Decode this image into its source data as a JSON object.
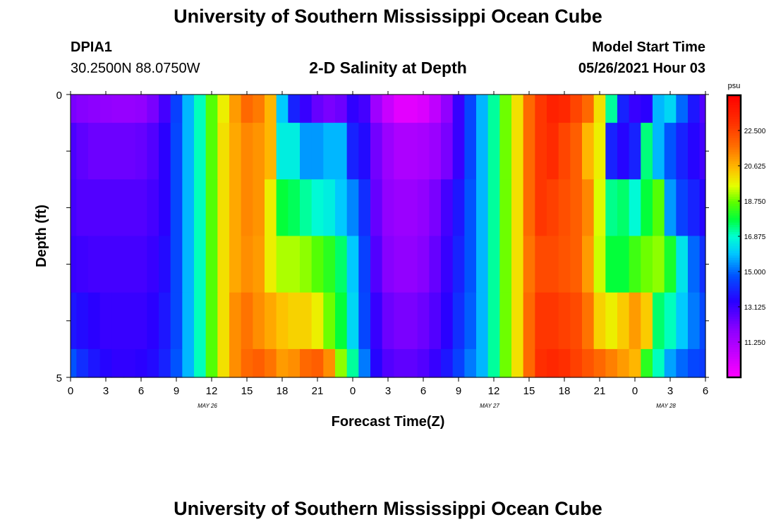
{
  "header": {
    "title": "University of Southern Mississippi Ocean Cube",
    "station_id": "DPIA1",
    "station_coords": "30.2500N  88.0750W",
    "plot_title": "2-D Salinity at Depth",
    "model_start_label": "Model Start Time",
    "model_start_value": "05/26/2021 Hour 03"
  },
  "footer": {
    "title": "University of Southern Mississippi Ocean Cube"
  },
  "chart_data": {
    "type": "heatmap",
    "title": "2-D Salinity at Depth",
    "xlabel": "Forecast Time(Z)",
    "ylabel": "Depth (ft)",
    "x_hours": [
      0,
      1,
      2,
      3,
      4,
      5,
      6,
      7,
      8,
      9,
      10,
      11,
      12,
      13,
      14,
      15,
      16,
      17,
      18,
      19,
      20,
      21,
      22,
      23,
      24,
      25,
      26,
      27,
      28,
      29,
      30,
      31,
      32,
      33,
      34,
      35,
      36,
      37,
      38,
      39,
      40,
      41,
      42,
      43,
      44,
      45,
      46,
      47,
      48,
      49,
      50,
      51,
      52,
      53,
      54
    ],
    "x_tick_labels": [
      "0",
      "3",
      "6",
      "9",
      "12",
      "15",
      "18",
      "21",
      "0",
      "3",
      "6",
      "9",
      "12",
      "15",
      "18",
      "21",
      "0",
      "3",
      "6"
    ],
    "date_labels": [
      {
        "text": "MAY 26",
        "hour": 12
      },
      {
        "text": "MAY 27",
        "hour": 36
      },
      {
        "text": "MAY 28",
        "hour": 51
      }
    ],
    "y_tick_labels": [
      "0",
      "5"
    ],
    "ylim": [
      0,
      5
    ],
    "colorbar": {
      "unit": "psu",
      "vmin": 9.375,
      "vmax": 24.375,
      "tick_labels": [
        "22.500",
        "20.625",
        "18.750",
        "16.875",
        "15.000",
        "13.125",
        "11.250"
      ],
      "tick_values": [
        22.5,
        20.625,
        18.75,
        16.875,
        15.0,
        13.125,
        11.25
      ]
    },
    "bands": [
      {
        "depth": [
          0.0,
          0.5
        ],
        "values": [
          12.2,
          12.0,
          11.9,
          11.8,
          11.7,
          11.7,
          11.8,
          12.2,
          13.0,
          14.5,
          15.8,
          17.0,
          18.6,
          19.8,
          21.0,
          21.8,
          21.5,
          20.6,
          16.0,
          14.0,
          13.2,
          12.5,
          12.2,
          12.4,
          13.3,
          13.0,
          11.5,
          10.6,
          10.0,
          10.0,
          10.2,
          10.8,
          11.8,
          13.2,
          14.6,
          15.8,
          17.2,
          18.8,
          20.0,
          21.8,
          22.8,
          23.4,
          23.2,
          22.5,
          21.8,
          20.0,
          17.2,
          14.0,
          13.2,
          13.4,
          15.8,
          16.2,
          15.0,
          13.8,
          12.8
        ]
      },
      {
        "depth": [
          0.5,
          1.5
        ],
        "values": [
          12.9,
          12.6,
          12.4,
          12.4,
          12.4,
          12.4,
          12.5,
          12.8,
          13.4,
          14.6,
          15.8,
          17.0,
          18.6,
          20.0,
          20.8,
          21.3,
          21.1,
          20.6,
          16.6,
          16.6,
          15.5,
          15.5,
          15.8,
          15.8,
          14.0,
          13.6,
          12.3,
          11.6,
          11.2,
          11.2,
          11.3,
          11.6,
          12.2,
          13.2,
          14.6,
          15.8,
          17.2,
          18.8,
          20.0,
          21.8,
          22.8,
          23.1,
          22.5,
          22.0,
          20.6,
          19.8,
          14.0,
          13.5,
          14.0,
          17.4,
          15.8,
          14.8,
          14.0,
          13.5,
          13.0
        ]
      },
      {
        "depth": [
          1.5,
          2.5
        ],
        "values": [
          13.0,
          12.8,
          12.8,
          12.8,
          12.8,
          12.8,
          12.8,
          13.0,
          13.4,
          14.6,
          15.8,
          17.0,
          18.6,
          20.0,
          20.8,
          21.3,
          21.1,
          19.8,
          17.8,
          17.6,
          17.2,
          16.8,
          16.6,
          16.0,
          15.3,
          14.2,
          12.5,
          11.8,
          11.6,
          11.6,
          11.8,
          12.2,
          13.0,
          13.8,
          14.8,
          15.8,
          17.2,
          18.8,
          20.0,
          21.8,
          22.8,
          22.6,
          22.3,
          22.0,
          21.3,
          19.5,
          17.3,
          17.5,
          16.8,
          17.8,
          18.6,
          15.5,
          14.5,
          14.0,
          13.5
        ]
      },
      {
        "depth": [
          2.5,
          3.5
        ],
        "values": [
          13.2,
          13.1,
          13.0,
          13.0,
          13.0,
          13.0,
          13.0,
          13.2,
          13.6,
          14.6,
          15.8,
          17.0,
          18.6,
          20.0,
          20.8,
          21.2,
          21.0,
          19.8,
          19.2,
          19.2,
          19.0,
          18.6,
          18.2,
          17.5,
          16.0,
          14.5,
          12.8,
          12.0,
          11.8,
          11.8,
          12.0,
          12.5,
          13.2,
          14.0,
          14.8,
          15.8,
          17.2,
          18.8,
          20.0,
          21.6,
          22.4,
          22.4,
          22.2,
          22.0,
          21.0,
          19.4,
          17.8,
          17.8,
          18.4,
          18.8,
          19.0,
          18.0,
          16.4,
          15.0,
          14.2
        ]
      },
      {
        "depth": [
          3.5,
          4.5
        ],
        "values": [
          13.8,
          13.6,
          13.4,
          13.2,
          13.2,
          13.2,
          13.2,
          13.4,
          13.8,
          14.6,
          15.8,
          17.0,
          18.6,
          20.0,
          21.2,
          21.6,
          21.2,
          20.8,
          20.4,
          20.2,
          20.2,
          19.8,
          18.8,
          17.8,
          16.2,
          14.6,
          13.2,
          12.4,
          12.2,
          12.2,
          12.4,
          12.8,
          13.4,
          14.2,
          14.9,
          15.8,
          17.2,
          18.8,
          20.0,
          21.8,
          22.8,
          22.8,
          22.6,
          22.4,
          21.6,
          20.2,
          19.8,
          20.3,
          21.0,
          20.3,
          17.5,
          17.0,
          16.0,
          15.2,
          14.6
        ]
      },
      {
        "depth": [
          4.5,
          5.0
        ],
        "values": [
          14.8,
          14.2,
          13.8,
          13.5,
          13.3,
          13.3,
          13.4,
          13.6,
          14.0,
          14.8,
          15.8,
          17.0,
          18.6,
          20.0,
          21.2,
          21.8,
          22.0,
          21.6,
          21.0,
          21.2,
          21.8,
          22.0,
          21.2,
          19.0,
          17.2,
          15.2,
          13.5,
          12.8,
          12.6,
          12.6,
          12.8,
          13.2,
          13.8,
          14.5,
          15.2,
          15.8,
          17.2,
          18.8,
          20.0,
          21.8,
          23.0,
          23.2,
          23.0,
          22.6,
          22.2,
          21.8,
          21.4,
          21.0,
          20.6,
          18.2,
          17.0,
          15.6,
          15.0,
          14.6,
          14.4
        ]
      }
    ]
  }
}
